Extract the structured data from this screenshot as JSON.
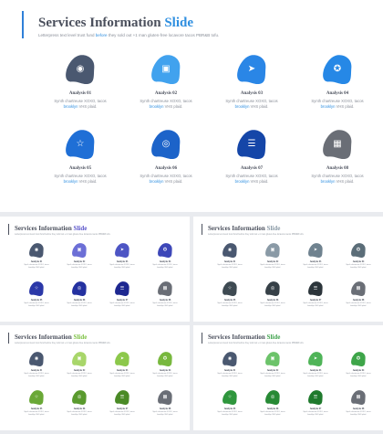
{
  "main": {
    "title_prefix": "Services Information",
    "title_highlight": "Slide",
    "subtitle_pre": "Letterpress text level trust fund",
    "subtitle_link": "before",
    "subtitle_post": "they sold out +1 man gluten-free locavore tacos PBR&B tofu.",
    "items": [
      {
        "label": "Analysis 01",
        "desc1": "Synth chartreuse XOXO, tacos",
        "desc_link": "brooklyn",
        "desc2": "VHS plaid.",
        "icon": "user-circle-icon",
        "glyph": "◉",
        "color": "#4a5870"
      },
      {
        "label": "Analysis 02",
        "desc1": "Synth chartreuse XOXO, tacos",
        "desc_link": "brooklyn",
        "desc2": "VHS plaid.",
        "icon": "bookmark-icon",
        "glyph": "▣",
        "color": "#41a2ee"
      },
      {
        "label": "Analysis 03",
        "desc1": "Synth chartreuse XOXO, tacos",
        "desc_link": "brooklyn",
        "desc2": "VHS plaid.",
        "icon": "paper-plane-icon",
        "glyph": "➤",
        "color": "#2a86e6"
      },
      {
        "label": "Analysis 04",
        "desc1": "Synth chartreuse XOXO, tacos",
        "desc_link": "brooklyn",
        "desc2": "VHS plaid.",
        "icon": "badge-icon",
        "glyph": "✪",
        "color": "#2688e6"
      },
      {
        "label": "Analysis 05",
        "desc1": "Synth chartreuse XOXO, tacos",
        "desc_link": "brooklyn",
        "desc2": "VHS plaid.",
        "icon": "star-icon",
        "glyph": "☆",
        "color": "#1f6fd6"
      },
      {
        "label": "Analysis 06",
        "desc1": "Synth chartreuse XOXO, tacos",
        "desc_link": "brooklyn",
        "desc2": "VHS plaid.",
        "icon": "coins-icon",
        "glyph": "◎",
        "color": "#1c63c9"
      },
      {
        "label": "Analysis 07",
        "desc1": "Synth chartreuse XOXO, tacos",
        "desc_link": "brooklyn",
        "desc2": "VHS plaid.",
        "icon": "sliders-icon",
        "glyph": "☰",
        "color": "#1546a8"
      },
      {
        "label": "Analysis 08",
        "desc1": "Synth chartreuse XOXO, tacos",
        "desc_link": "brooklyn",
        "desc2": "VHS plaid.",
        "icon": "gift-icon",
        "glyph": "▦",
        "color": "#6a6e76"
      }
    ]
  },
  "thumbnails": [
    {
      "title_prefix": "Services Information",
      "title_highlight": "Slide",
      "highlight_color": "#5a54c9",
      "subtitle": "Letterpress text level trust fund before they sold out +1 man gluten-free locavore tacos PBR&B tofu.",
      "items": [
        {
          "label": "Analysis 01",
          "color": "#4a5870",
          "glyph": "◉"
        },
        {
          "label": "Analysis 02",
          "color": "#6c6fd6",
          "glyph": "▣"
        },
        {
          "label": "Analysis 03",
          "color": "#4d55c4",
          "glyph": "➤"
        },
        {
          "label": "Analysis 04",
          "color": "#3d47b8",
          "glyph": "✪"
        },
        {
          "label": "Analysis 05",
          "color": "#2b38a8",
          "glyph": "☆"
        },
        {
          "label": "Analysis 06",
          "color": "#2431a0",
          "glyph": "◎"
        },
        {
          "label": "Analysis 07",
          "color": "#1d2790",
          "glyph": "☰"
        },
        {
          "label": "Analysis 08",
          "color": "#6a6e76",
          "glyph": "▦"
        }
      ]
    },
    {
      "title_prefix": "Services Information",
      "title_highlight": "Slide",
      "highlight_color": "#8a9aa6",
      "subtitle": "Letterpress text level trust fund before they sold out +1 man gluten-free locavore tacos PBR&B tofu.",
      "items": [
        {
          "label": "Analysis 01",
          "color": "#4a5870",
          "glyph": "◉"
        },
        {
          "label": "Analysis 02",
          "color": "#8a9aa6",
          "glyph": "▣"
        },
        {
          "label": "Analysis 03",
          "color": "#6f828f",
          "glyph": "➤"
        },
        {
          "label": "Analysis 04",
          "color": "#5b6d78",
          "glyph": "✪"
        },
        {
          "label": "Analysis 05",
          "color": "#3e4a52",
          "glyph": "☆"
        },
        {
          "label": "Analysis 06",
          "color": "#364047",
          "glyph": "◎"
        },
        {
          "label": "Analysis 07",
          "color": "#2c353b",
          "glyph": "☰"
        },
        {
          "label": "Analysis 08",
          "color": "#6a6e76",
          "glyph": "▦"
        }
      ]
    },
    {
      "title_prefix": "Services Information",
      "title_highlight": "Slide",
      "highlight_color": "#7cc142",
      "subtitle": "Letterpress text level trust fund before they sold out +1 man gluten-free locavore tacos PBR&B tofu.",
      "items": [
        {
          "label": "Analysis 01",
          "color": "#4a5870",
          "glyph": "◉"
        },
        {
          "label": "Analysis 02",
          "color": "#a8d66a",
          "glyph": "▣"
        },
        {
          "label": "Analysis 03",
          "color": "#8cc84b",
          "glyph": "➤"
        },
        {
          "label": "Analysis 04",
          "color": "#78b83e",
          "glyph": "✪"
        },
        {
          "label": "Analysis 05",
          "color": "#6aa837",
          "glyph": "☆"
        },
        {
          "label": "Analysis 06",
          "color": "#5a9a2e",
          "glyph": "◎"
        },
        {
          "label": "Analysis 07",
          "color": "#4a8a26",
          "glyph": "☰"
        },
        {
          "label": "Analysis 08",
          "color": "#6a6e76",
          "glyph": "▦"
        }
      ]
    },
    {
      "title_prefix": "Services Information",
      "title_highlight": "Slide",
      "highlight_color": "#3fa34d",
      "subtitle": "Letterpress text level trust fund before they sold out +1 man gluten-free locavore tacos PBR&B tofu.",
      "items": [
        {
          "label": "Analysis 01",
          "color": "#4a5870",
          "glyph": "◉"
        },
        {
          "label": "Analysis 02",
          "color": "#6cc36a",
          "glyph": "▣"
        },
        {
          "label": "Analysis 03",
          "color": "#4fb458",
          "glyph": "➤"
        },
        {
          "label": "Analysis 04",
          "color": "#3ea549",
          "glyph": "✪"
        },
        {
          "label": "Analysis 05",
          "color": "#2f963d",
          "glyph": "☆"
        },
        {
          "label": "Analysis 06",
          "color": "#278a35",
          "glyph": "◎"
        },
        {
          "label": "Analysis 07",
          "color": "#1f7a2d",
          "glyph": "☰"
        },
        {
          "label": "Analysis 08",
          "color": "#6a6e76",
          "glyph": "▦"
        }
      ]
    }
  ]
}
